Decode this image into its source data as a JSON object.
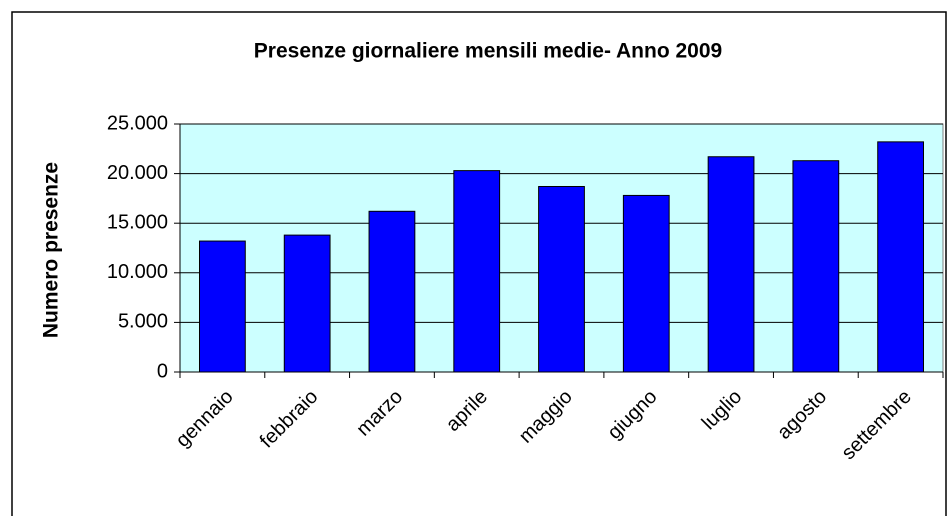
{
  "chart_data": {
    "type": "bar",
    "title": "Presenze giornaliere mensili medie- Anno 2009",
    "y_label": "Numero presenze",
    "categories": [
      "gennaio",
      "febbraio",
      "marzo",
      "aprile",
      "maggio",
      "giugno",
      "luglio",
      "agosto",
      "settembre"
    ],
    "values": [
      13200,
      13800,
      16200,
      20300,
      18700,
      17800,
      21700,
      21300,
      23200
    ],
    "color": "#0000ff",
    "ylim": [
      0,
      25000
    ],
    "yticks": [
      0,
      {
        "value": 5000,
        "label": "5.000"
      },
      {
        "value": 10000,
        "label": "10.000"
      },
      {
        "value": 15000,
        "label": "15.000"
      },
      {
        "value": 20000,
        "label": "20.000"
      },
      {
        "value": 25000,
        "label": "25.000"
      }
    ],
    "grid": true
  }
}
